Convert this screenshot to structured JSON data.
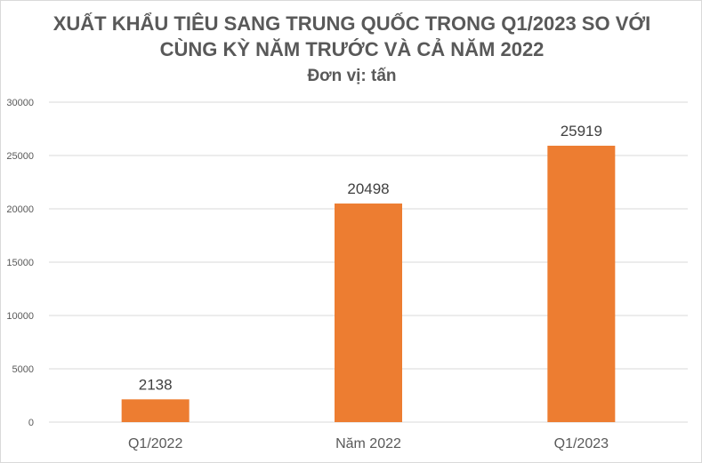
{
  "chart_data": {
    "type": "bar",
    "title_line1": "XUẤT KHẨU TIÊU SANG TRUNG QUỐC TRONG Q1/2023 SO VỚI",
    "title_line2": "CÙNG KỲ NĂM TRƯỚC VÀ CẢ NĂM 2022",
    "subtitle": "Đơn vị: tấn",
    "categories": [
      "Q1/2022",
      "Năm 2022",
      "Q1/2023"
    ],
    "values": [
      2138,
      20498,
      25919
    ],
    "data_labels": [
      "2138",
      "20498",
      "25919"
    ],
    "y_ticks": [
      "0",
      "5000",
      "10000",
      "15000",
      "20000",
      "25000",
      "30000"
    ],
    "ylim": [
      0,
      30000
    ],
    "grid": true,
    "legend": "none",
    "bar_color": "#ED7D31",
    "gridline_color": "#D9D9D9",
    "text_color": "#595959"
  }
}
